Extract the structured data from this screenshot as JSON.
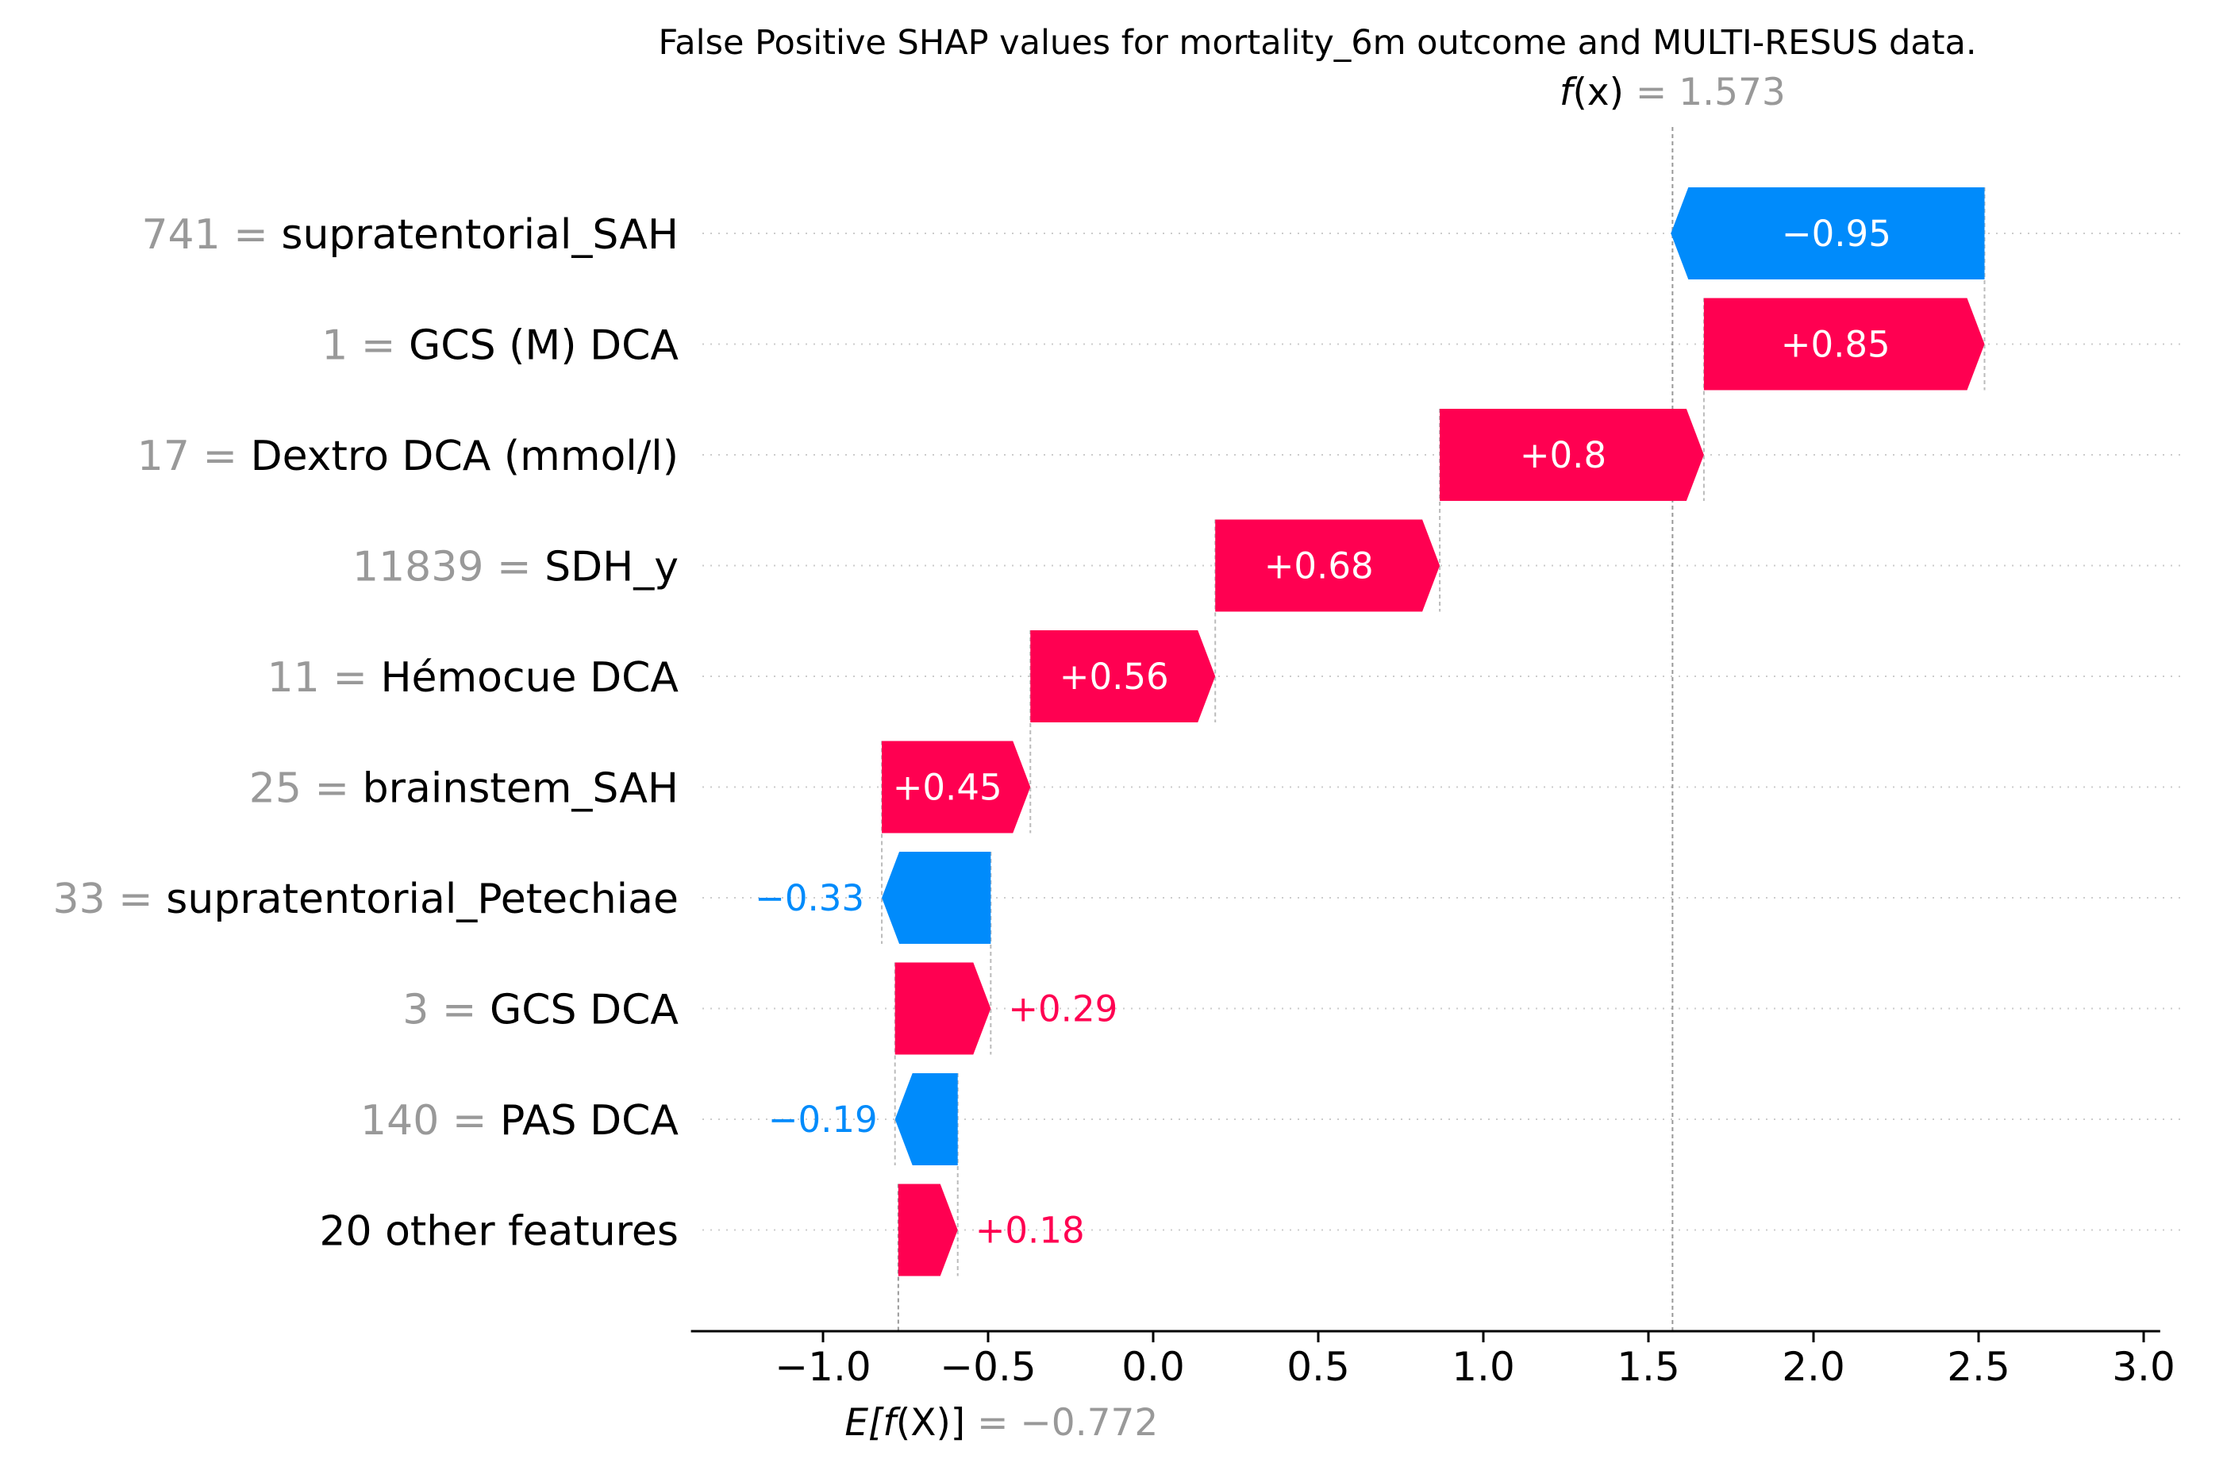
{
  "chart_data": {
    "type": "waterfall",
    "title": "False Positive SHAP values for mortality_6m outcome and MULTI-RESUS data.",
    "base_value": -0.772,
    "base_value_text": "−0.772",
    "base_label_prefix": "E[",
    "base_label_mid": "f",
    "base_label_mid2": "(X)",
    "base_label_suffix": "]",
    "fx_value": 1.573,
    "fx_value_text": "1.573",
    "fx_label_f": "f",
    "fx_label_x": "(x)",
    "equals": " = ",
    "xlim": [
      -1.4,
      3.05
    ],
    "xticks": [
      -1.0,
      -0.5,
      0.0,
      0.5,
      1.0,
      1.5,
      2.0,
      2.5,
      3.0
    ],
    "xtick_labels": [
      "−1.0",
      "−0.5",
      "0.0",
      "0.5",
      "1.0",
      "1.5",
      "2.0",
      "2.5",
      "3.0"
    ],
    "colors": {
      "positive": "#ff0051",
      "negative": "#008bfb",
      "value_text": "#999999",
      "axis": "#000000"
    },
    "features": [
      {
        "value": "741",
        "name": "supratentorial_SAH",
        "shap": -0.95,
        "label": "−0.95",
        "label_inside": true
      },
      {
        "value": "1",
        "name": "GCS (M) DCA",
        "shap": 0.85,
        "label": "+0.85",
        "label_inside": true
      },
      {
        "value": "17",
        "name": "Dextro DCA (mmol/l)",
        "shap": 0.8,
        "label": "+0.8",
        "label_inside": true
      },
      {
        "value": "11839",
        "name": "SDH_y",
        "shap": 0.68,
        "label": "+0.68",
        "label_inside": true
      },
      {
        "value": "11",
        "name": "Hémocue DCA",
        "shap": 0.56,
        "label": "+0.56",
        "label_inside": true
      },
      {
        "value": "25",
        "name": "brainstem_SAH",
        "shap": 0.45,
        "label": "+0.45",
        "label_inside": true
      },
      {
        "value": "33",
        "name": "supratentorial_Petechiae",
        "shap": -0.33,
        "label": "−0.33",
        "label_inside": false
      },
      {
        "value": "3",
        "name": "GCS DCA",
        "shap": 0.29,
        "label": "+0.29",
        "label_inside": false
      },
      {
        "value": "140",
        "name": "PAS DCA",
        "shap": -0.19,
        "label": "−0.19",
        "label_inside": false
      },
      {
        "value": "",
        "name": "20 other features",
        "shap": 0.18,
        "label": "+0.18",
        "label_inside": false
      }
    ]
  }
}
